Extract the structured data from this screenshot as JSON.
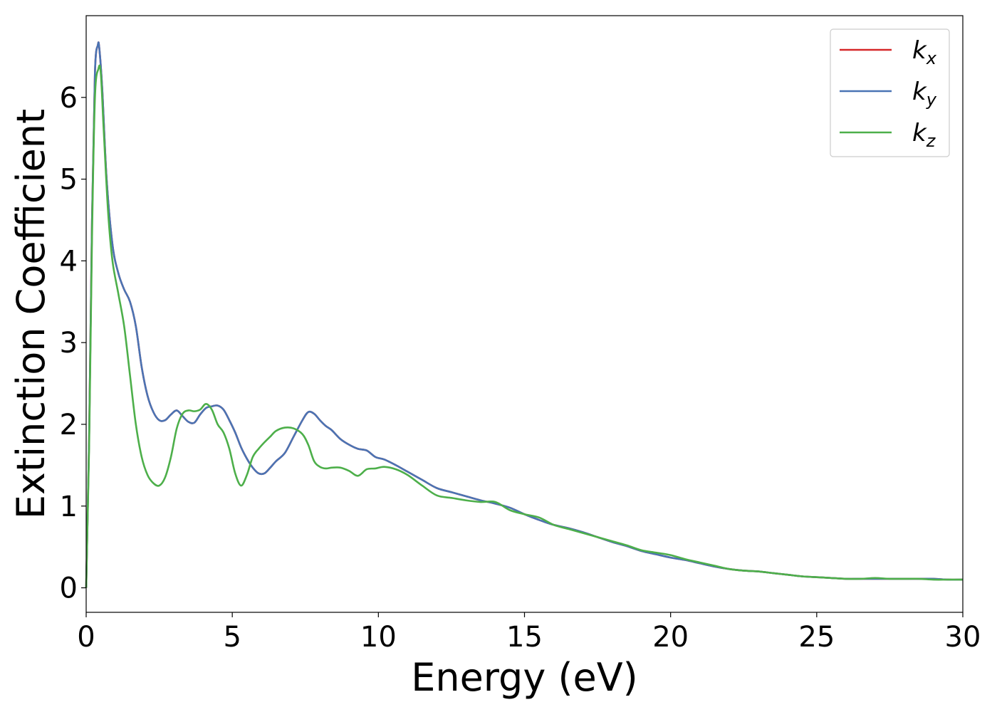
{
  "chart_data": {
    "type": "line",
    "xlabel": "Energy (eV)",
    "ylabel": "Extinction Coefficient",
    "xlim": [
      0,
      30
    ],
    "ylim": [
      -0.3,
      7.0
    ],
    "xticks": [
      0,
      5,
      10,
      15,
      20,
      25,
      30
    ],
    "yticks": [
      0,
      1,
      2,
      3,
      4,
      5,
      6
    ],
    "xtick_labels": [
      "0",
      "5",
      "10",
      "15",
      "20",
      "25",
      "30"
    ],
    "ytick_labels": [
      "0",
      "1",
      "2",
      "3",
      "4",
      "5",
      "6"
    ],
    "grid": false,
    "legend_position": "top-right",
    "series": [
      {
        "name": "k_x",
        "label_main": "k",
        "label_sub": "x",
        "color": "#d62728",
        "x": [
          0,
          0.1,
          0.2,
          0.3,
          0.4,
          0.45,
          0.55,
          0.7,
          0.9,
          1.1,
          1.3,
          1.5,
          1.7,
          1.9,
          2.1,
          2.3,
          2.5,
          2.7,
          2.9,
          3.1,
          3.3,
          3.5,
          3.7,
          3.9,
          4.1,
          4.3,
          4.5,
          4.7,
          4.9,
          5.1,
          5.3,
          5.5,
          5.7,
          5.9,
          6.1,
          6.3,
          6.5,
          6.8,
          7.1,
          7.4,
          7.6,
          7.8,
          8.0,
          8.2,
          8.4,
          8.7,
          9.0,
          9.3,
          9.6,
          9.9,
          10.2,
          10.6,
          11.0,
          11.5,
          12.0,
          12.5,
          13.0,
          13.5,
          14.0,
          14.5,
          15.0,
          15.5,
          16.0,
          16.5,
          17.0,
          17.5,
          18.0,
          18.5,
          19.0,
          19.5,
          20.0,
          20.5,
          21.0,
          21.5,
          22.0,
          22.5,
          23.0,
          23.5,
          24.0,
          24.5,
          25.0,
          25.5,
          26.0,
          26.5,
          27.0,
          27.5,
          28.0,
          28.5,
          29.0,
          29.5,
          30.0
        ],
        "values": [
          0,
          1.8,
          4.5,
          6.3,
          6.64,
          6.6,
          6.1,
          5.0,
          4.2,
          3.85,
          3.65,
          3.5,
          3.2,
          2.7,
          2.35,
          2.15,
          2.05,
          2.05,
          2.12,
          2.17,
          2.1,
          2.03,
          2.02,
          2.12,
          2.2,
          2.22,
          2.23,
          2.18,
          2.05,
          1.9,
          1.72,
          1.58,
          1.47,
          1.4,
          1.4,
          1.47,
          1.55,
          1.65,
          1.85,
          2.05,
          2.15,
          2.13,
          2.05,
          1.98,
          1.93,
          1.82,
          1.75,
          1.7,
          1.68,
          1.6,
          1.57,
          1.5,
          1.42,
          1.32,
          1.22,
          1.17,
          1.12,
          1.07,
          1.03,
          0.98,
          0.9,
          0.83,
          0.77,
          0.73,
          0.68,
          0.62,
          0.56,
          0.51,
          0.45,
          0.41,
          0.37,
          0.34,
          0.3,
          0.26,
          0.23,
          0.21,
          0.2,
          0.18,
          0.16,
          0.14,
          0.13,
          0.12,
          0.11,
          0.11,
          0.11,
          0.11,
          0.11,
          0.11,
          0.11,
          0.1,
          0.1
        ]
      },
      {
        "name": "k_y",
        "label_main": "k",
        "label_sub": "y",
        "color": "#4a74b4",
        "x": [
          0,
          0.1,
          0.2,
          0.3,
          0.4,
          0.45,
          0.55,
          0.7,
          0.9,
          1.1,
          1.3,
          1.5,
          1.7,
          1.9,
          2.1,
          2.3,
          2.5,
          2.7,
          2.9,
          3.1,
          3.3,
          3.5,
          3.7,
          3.9,
          4.1,
          4.3,
          4.5,
          4.7,
          4.9,
          5.1,
          5.3,
          5.5,
          5.7,
          5.9,
          6.1,
          6.3,
          6.5,
          6.8,
          7.1,
          7.4,
          7.6,
          7.8,
          8.0,
          8.2,
          8.4,
          8.7,
          9.0,
          9.3,
          9.6,
          9.9,
          10.2,
          10.6,
          11.0,
          11.5,
          12.0,
          12.5,
          13.0,
          13.5,
          14.0,
          14.5,
          15.0,
          15.5,
          16.0,
          16.5,
          17.0,
          17.5,
          18.0,
          18.5,
          19.0,
          19.5,
          20.0,
          20.5,
          21.0,
          21.5,
          22.0,
          22.5,
          23.0,
          23.5,
          24.0,
          24.5,
          25.0,
          25.5,
          26.0,
          26.5,
          27.0,
          27.5,
          28.0,
          28.5,
          29.0,
          29.5,
          30.0
        ],
        "values": [
          0,
          1.8,
          4.5,
          6.3,
          6.64,
          6.6,
          6.1,
          5.0,
          4.2,
          3.85,
          3.65,
          3.5,
          3.2,
          2.7,
          2.35,
          2.15,
          2.05,
          2.05,
          2.12,
          2.17,
          2.1,
          2.03,
          2.02,
          2.12,
          2.2,
          2.22,
          2.23,
          2.18,
          2.05,
          1.9,
          1.72,
          1.58,
          1.47,
          1.4,
          1.4,
          1.47,
          1.55,
          1.65,
          1.85,
          2.05,
          2.15,
          2.13,
          2.05,
          1.98,
          1.93,
          1.82,
          1.75,
          1.7,
          1.68,
          1.6,
          1.57,
          1.5,
          1.42,
          1.32,
          1.22,
          1.17,
          1.12,
          1.07,
          1.03,
          0.98,
          0.9,
          0.83,
          0.77,
          0.73,
          0.68,
          0.62,
          0.56,
          0.51,
          0.45,
          0.41,
          0.37,
          0.34,
          0.3,
          0.26,
          0.23,
          0.21,
          0.2,
          0.18,
          0.16,
          0.14,
          0.13,
          0.12,
          0.11,
          0.11,
          0.11,
          0.11,
          0.11,
          0.11,
          0.11,
          0.1,
          0.1
        ]
      },
      {
        "name": "k_z",
        "label_main": "k",
        "label_sub": "z",
        "color": "#4daf4a",
        "x": [
          0,
          0.1,
          0.2,
          0.3,
          0.42,
          0.5,
          0.6,
          0.75,
          0.9,
          1.1,
          1.3,
          1.5,
          1.7,
          1.9,
          2.1,
          2.3,
          2.5,
          2.7,
          2.9,
          3.1,
          3.3,
          3.5,
          3.7,
          3.9,
          4.1,
          4.3,
          4.5,
          4.7,
          4.9,
          5.1,
          5.3,
          5.5,
          5.7,
          5.9,
          6.1,
          6.3,
          6.5,
          6.8,
          7.1,
          7.4,
          7.6,
          7.8,
          8.0,
          8.2,
          8.4,
          8.7,
          9.0,
          9.3,
          9.6,
          9.9,
          10.2,
          10.6,
          11.0,
          11.5,
          12.0,
          12.5,
          13.0,
          13.5,
          14.0,
          14.5,
          15.0,
          15.5,
          16.0,
          16.5,
          17.0,
          17.5,
          18.0,
          18.5,
          19.0,
          19.5,
          20.0,
          20.5,
          21.0,
          21.5,
          22.0,
          22.5,
          23.0,
          23.5,
          24.0,
          24.5,
          25.0,
          25.5,
          26.0,
          26.5,
          27.0,
          27.5,
          28.0,
          28.5,
          29.0,
          29.5,
          30.0
        ],
        "values": [
          0,
          1.7,
          4.3,
          6.0,
          6.35,
          6.3,
          5.6,
          4.6,
          4.0,
          3.6,
          3.2,
          2.6,
          2.0,
          1.6,
          1.38,
          1.28,
          1.25,
          1.35,
          1.6,
          1.95,
          2.13,
          2.17,
          2.16,
          2.18,
          2.25,
          2.18,
          2.0,
          1.9,
          1.7,
          1.4,
          1.25,
          1.38,
          1.6,
          1.7,
          1.78,
          1.85,
          1.92,
          1.96,
          1.95,
          1.88,
          1.75,
          1.55,
          1.48,
          1.46,
          1.47,
          1.47,
          1.43,
          1.37,
          1.45,
          1.46,
          1.48,
          1.45,
          1.38,
          1.25,
          1.13,
          1.1,
          1.07,
          1.05,
          1.05,
          0.95,
          0.9,
          0.86,
          0.77,
          0.72,
          0.67,
          0.62,
          0.57,
          0.52,
          0.46,
          0.43,
          0.4,
          0.35,
          0.31,
          0.27,
          0.23,
          0.21,
          0.2,
          0.18,
          0.16,
          0.14,
          0.13,
          0.12,
          0.11,
          0.11,
          0.12,
          0.11,
          0.11,
          0.11,
          0.1,
          0.1,
          0.1
        ]
      }
    ]
  }
}
